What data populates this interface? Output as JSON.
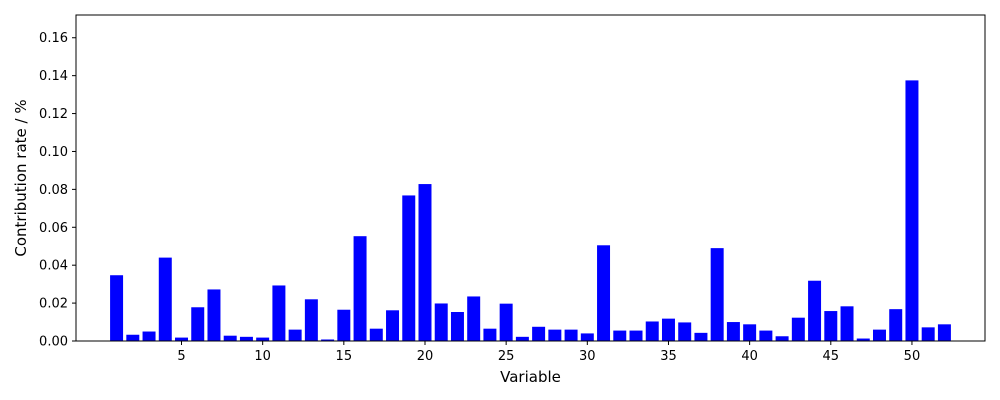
{
  "chart_data": {
    "type": "bar",
    "title": "",
    "xlabel": "Variable",
    "ylabel": "Contribution rate / %",
    "bar_color": "#0000ff",
    "grid": false,
    "legend": "none",
    "xlim": [
      -1.5,
      54.5
    ],
    "ylim": [
      0,
      0.172
    ],
    "x_ticks": [
      5,
      10,
      15,
      20,
      25,
      30,
      35,
      40,
      45,
      50
    ],
    "y_ticks": [
      0.0,
      0.02,
      0.04,
      0.06,
      0.08,
      0.1,
      0.12,
      0.14,
      0.16
    ],
    "y_tick_labels": [
      "0.00",
      "0.02",
      "0.04",
      "0.06",
      "0.08",
      "0.10",
      "0.12",
      "0.14",
      "0.16"
    ],
    "categories": [
      1,
      2,
      3,
      4,
      5,
      6,
      7,
      8,
      9,
      10,
      11,
      12,
      13,
      14,
      15,
      16,
      17,
      18,
      19,
      20,
      21,
      22,
      23,
      24,
      25,
      26,
      27,
      28,
      29,
      30,
      31,
      32,
      33,
      34,
      35,
      36,
      37,
      38,
      39,
      40,
      41,
      42,
      43,
      44,
      45,
      46,
      47,
      48,
      49,
      50,
      51,
      52
    ],
    "values": [
      0.0347,
      0.0033,
      0.005,
      0.044,
      0.0018,
      0.0178,
      0.0272,
      0.0028,
      0.0022,
      0.0018,
      0.0293,
      0.006,
      0.022,
      0.0008,
      0.0165,
      0.0553,
      0.0065,
      0.0162,
      0.0768,
      0.0828,
      0.0198,
      0.0153,
      0.0235,
      0.0065,
      0.0197,
      0.0022,
      0.0075,
      0.006,
      0.006,
      0.004,
      0.0505,
      0.0055,
      0.0055,
      0.0103,
      0.0118,
      0.0098,
      0.0043,
      0.049,
      0.01,
      0.0088,
      0.0055,
      0.0025,
      0.0123,
      0.0318,
      0.0158,
      0.0183,
      0.0013,
      0.006,
      0.0168,
      0.1375,
      0.0072,
      0.0088
    ]
  }
}
